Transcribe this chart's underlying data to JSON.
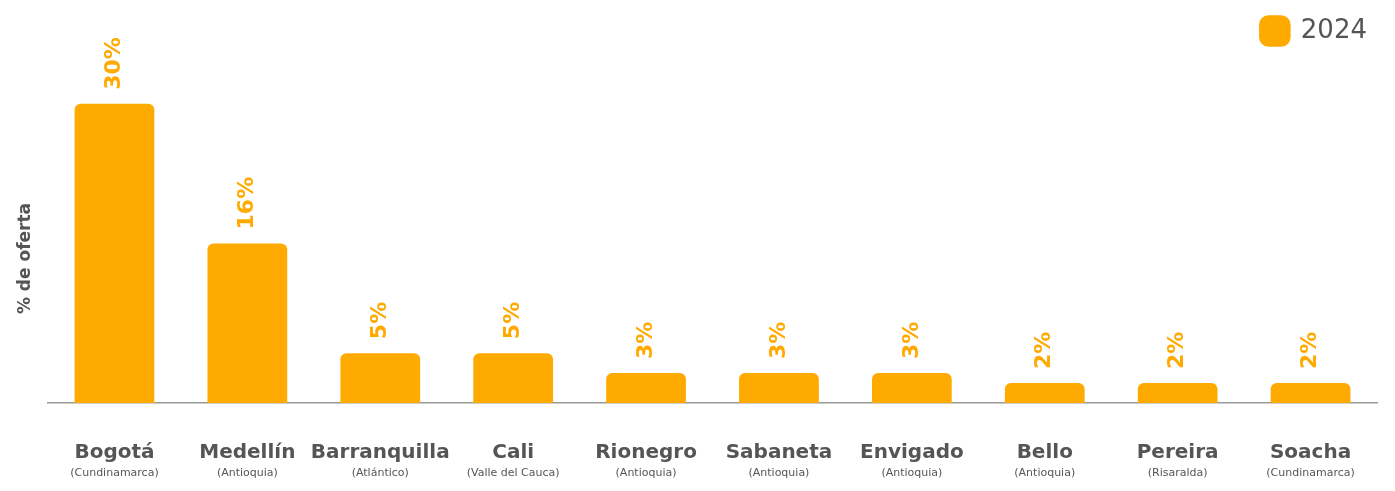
{
  "chart_data": {
    "type": "bar",
    "ylabel": "% de oferta",
    "categories": [
      "Bogotá\n(Cundinamarca)",
      "Medellín\n(Antioquia)",
      "Barranquilla\n(Atlántico)",
      "Cali\n(Valle del Cauca)",
      "Rionegro\n(Antioquia)",
      "Sabaneta\n(Antioquia)",
      "Envigado\n(Antioquia)",
      "Bello\n(Antioquia)",
      "Pereira\n(Risaralda)",
      "Soacha\n(Cundinamarca)"
    ],
    "series": [
      {
        "name": "2024",
        "color": "#ffaa00",
        "values": [
          30,
          16,
          5,
          5,
          3,
          3,
          3,
          2,
          2,
          2
        ],
        "value_labels": [
          "30%",
          "16%",
          "5%",
          "5%",
          "3%",
          "3%",
          "3%",
          "2%",
          "2%",
          "2%"
        ]
      }
    ],
    "legend": "top right"
  }
}
